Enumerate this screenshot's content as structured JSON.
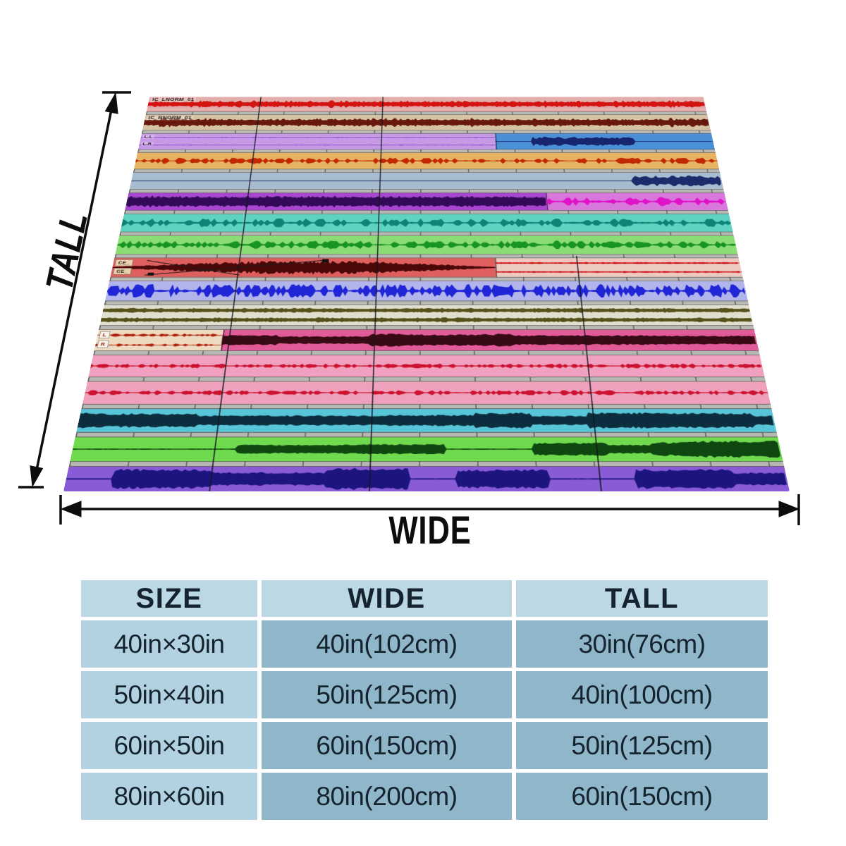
{
  "annotations": {
    "tall": "TALL",
    "wide": "WIDE"
  },
  "blanket": {
    "grid_lines": [
      {
        "f": 0.2,
        "top": 0
      },
      {
        "f": 0.42,
        "top": 0
      },
      {
        "f": 0.74,
        "top": 0.47
      }
    ],
    "tracks": [
      {
        "labels": [
          {
            "text": "IC_LNORM_01"
          }
        ],
        "segments": [
          {
            "from": 0,
            "bg": "#e2adaa",
            "wave": {
              "type": "noise",
              "color": "#d31512",
              "amp": [
                3,
                11
              ]
            }
          }
        ]
      },
      {
        "labels": [
          {
            "text": "IC_RNORM_01"
          }
        ],
        "segments": [
          {
            "from": 0,
            "bg": "#d6c2a4",
            "wave": {
              "type": "noise",
              "color": "#68190d",
              "amp": [
                4,
                13
              ]
            }
          }
        ]
      },
      {
        "labels": [
          {
            "text": "L.L"
          },
          {
            "text": "L.R"
          }
        ],
        "segments": [
          {
            "from": 0,
            "bg": "#c79ae6",
            "wave": {
              "type": "noise",
              "rows": 2,
              "color": "#7b33c4",
              "amp": [
                0.5,
                2
              ]
            }
          },
          {
            "from": 0.62,
            "bg": "#4b90d6",
            "wave": {
              "type": "blobs",
              "color": "#16256e",
              "amp": [
                4,
                12
              ]
            }
          }
        ]
      },
      {
        "labels": [],
        "segments": [
          {
            "from": 0,
            "bg": "#e6b363",
            "wave": {
              "type": "spikes",
              "color": "#c22803",
              "amp": [
                1.5,
                8
              ],
              "prob": 0.42
            }
          }
        ]
      },
      {
        "labels": [],
        "segments": [
          {
            "from": 0,
            "bg": "#a7bccf",
            "wave": {
              "type": "blobs",
              "color": "#1b2b6b",
              "amp": [
                4,
                13
              ]
            }
          }
        ]
      },
      {
        "labels": [],
        "segments": [
          {
            "from": 0,
            "bg": "#a846d2",
            "wave": {
              "type": "noise",
              "color": "#330a58",
              "amp": [
                7,
                15
              ]
            }
          },
          {
            "from": 0.7,
            "bg": "#d877dc",
            "wave": {
              "type": "spikes",
              "color": "#df13c8",
              "amp": [
                3,
                11
              ],
              "prob": 0.45
            }
          }
        ]
      },
      {
        "labels": [],
        "segments": [
          {
            "from": 0,
            "bg": "#5ed3c2",
            "wave": {
              "type": "spikes",
              "color": "#0d8476",
              "amp": [
                2.5,
                10
              ],
              "prob": 0.38
            }
          }
        ]
      },
      {
        "labels": [],
        "segments": [
          {
            "from": 0,
            "bg": "#8bdc74",
            "wave": {
              "type": "spikes",
              "color": "#179523",
              "amp": [
                2.5,
                9
              ],
              "prob": 0.42
            }
          }
        ]
      },
      {
        "labels": [
          {
            "text": "CE_",
            "bg": "#ead2b0",
            "fg": "#161008"
          },
          {
            "text": "CE_",
            "bg": "#ead2b0",
            "fg": "#161008"
          }
        ],
        "fade": true,
        "segments": [
          {
            "from": 0,
            "bg": "#df5f5f",
            "wave": {
              "type": "envelope",
              "color": "#4a0808",
              "amp": [
                1,
                15
              ]
            }
          },
          {
            "from": 0.61,
            "bg": "#ecc9c1",
            "wave": {
              "type": "noise",
              "rows": 2,
              "color": "#cf1313",
              "amp": [
                1.5,
                4.5
              ]
            }
          }
        ]
      },
      {
        "labels": [],
        "segments": [
          {
            "from": 0,
            "bg": "#b1b5ec",
            "wave": {
              "type": "spikes",
              "color": "#2025d6",
              "amp": [
                3,
                14
              ],
              "prob": 0.55,
              "step": 4
            }
          }
        ]
      },
      {
        "labels": [],
        "segments": [
          {
            "from": 0,
            "bg": "#e0dfcf",
            "wave": {
              "type": "noise",
              "rows": 2,
              "color": "#55511a",
              "amp": [
                4,
                11
              ]
            }
          }
        ]
      },
      {
        "labels": [
          {
            "text": "L",
            "bg": "#f7f2ea",
            "fg": "#8c1408"
          },
          {
            "text": "R",
            "bg": "#f7f2ea",
            "fg": "#8c1408"
          }
        ],
        "segments": [
          {
            "from": 0,
            "bg": "#eedac1",
            "wave": {
              "type": "spikes",
              "rows": 2,
              "color": "#ad230e",
              "amp": [
                1.5,
                6.5
              ],
              "prob": 0.5,
              "step": 4
            }
          },
          {
            "from": 0.19,
            "bg": "#e25b99",
            "wave": {
              "type": "chunky",
              "color": "#380a15",
              "amp": [
                5,
                14
              ]
            }
          }
        ]
      },
      {
        "labels": [],
        "segments": [
          {
            "from": 0,
            "bg": "#f1a0c0",
            "wave": {
              "type": "spikes",
              "color": "#cc1330",
              "amp": [
                1,
                4.5
              ],
              "prob": 0.5,
              "step": 4
            }
          }
        ]
      },
      {
        "labels": [],
        "segments": [
          {
            "from": 0,
            "bg": "#efa0bd",
            "wave": {
              "type": "spikes",
              "color": "#cc1330",
              "amp": [
                1,
                4.5
              ],
              "prob": 0.5,
              "step": 4
            }
          }
        ]
      },
      {
        "labels": [],
        "segments": [
          {
            "from": 0,
            "bg": "#57c5d7",
            "wave": {
              "type": "chunky",
              "color": "#0b2d3d",
              "amp": [
                6,
                16
              ]
            }
          }
        ]
      },
      {
        "labels": [],
        "segments": [
          {
            "from": 0,
            "bg": "#6fda4e",
            "wave": {
              "type": "chunky",
              "color": "#0e470f",
              "amp": [
                6,
                16
              ]
            }
          }
        ]
      },
      {
        "labels": [],
        "segments": [
          {
            "from": 0,
            "bg": "#8a5bd6",
            "wave": {
              "type": "chunky",
              "color": "#1c157e",
              "amp": [
                8,
                18
              ]
            }
          }
        ]
      }
    ]
  },
  "size_chart": {
    "headers": [
      "SIZE",
      "WIDE",
      "TALL"
    ],
    "rows": [
      [
        "40in×30in",
        "40in(102cm)",
        "30in(76cm)"
      ],
      [
        "50in×40in",
        "50in(125cm)",
        "40in(100cm)"
      ],
      [
        "60in×50in",
        "60in(150cm)",
        "50in(125cm)"
      ],
      [
        "80in×60in",
        "80in(200cm)",
        "60in(150cm)"
      ]
    ],
    "colors": {
      "header_bg": "#bcd8e5",
      "size_col_bg": "#b3d2e1",
      "value_cell_bg": "#8fb6c9",
      "text": "#15232e"
    }
  }
}
